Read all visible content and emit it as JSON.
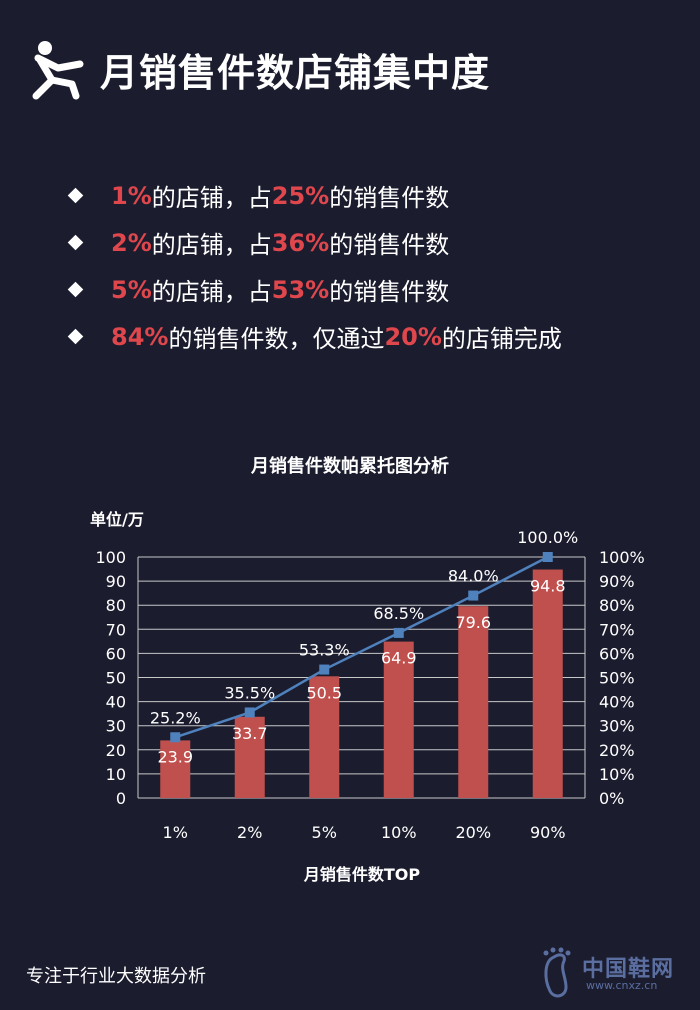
{
  "header": {
    "title": "月销售件数店铺集中度",
    "icon": "person-pushing-icon"
  },
  "bullets": [
    {
      "parts": [
        {
          "t": "1%",
          "hl": true
        },
        {
          "t": "的店铺，占",
          "hl": false
        },
        {
          "t": "25%",
          "hl": true
        },
        {
          "t": "的销售件数",
          "hl": false
        }
      ]
    },
    {
      "parts": [
        {
          "t": "2%",
          "hl": true
        },
        {
          "t": "的店铺，占",
          "hl": false
        },
        {
          "t": "36%",
          "hl": true
        },
        {
          "t": "的销售件数",
          "hl": false
        }
      ]
    },
    {
      "parts": [
        {
          "t": "5%",
          "hl": true
        },
        {
          "t": "的店铺，占",
          "hl": false
        },
        {
          "t": "53%",
          "hl": true
        },
        {
          "t": "的销售件数",
          "hl": false
        }
      ]
    },
    {
      "parts": [
        {
          "t": "84%",
          "hl": true
        },
        {
          "t": "的销售件数，仅通过",
          "hl": false
        },
        {
          "t": "20%",
          "hl": true
        },
        {
          "t": "的店铺完成",
          "hl": false
        }
      ]
    }
  ],
  "chart_data": {
    "type": "bar",
    "title": "月销售件数帕累托图分析",
    "ylabel": "单位/万",
    "xlabel": "月销售件数TOP",
    "categories": [
      "1%",
      "2%",
      "5%",
      "10%",
      "20%",
      "90%"
    ],
    "series": [
      {
        "type": "bar",
        "axis": "left",
        "values": [
          23.9,
          33.7,
          50.5,
          64.9,
          79.6,
          94.8
        ],
        "labels": [
          "23.9",
          "33.7",
          "50.5",
          "64.9",
          "79.6",
          "94.8"
        ],
        "color": "#c0504d"
      },
      {
        "type": "line",
        "axis": "right",
        "values": [
          25.2,
          35.5,
          53.3,
          68.5,
          84.0,
          100.0
        ],
        "labels": [
          "25.2%",
          "35.5%",
          "53.3%",
          "68.5%",
          "84.0%",
          "100.0%"
        ],
        "color": "#4f81bd"
      }
    ],
    "ylim": [
      0,
      100
    ],
    "yticks": [
      "0",
      "10",
      "20",
      "30",
      "40",
      "50",
      "60",
      "70",
      "80",
      "90",
      "100"
    ],
    "y2lim": [
      0,
      100
    ],
    "y2ticks": [
      "0%",
      "10%",
      "20%",
      "30%",
      "40%",
      "50%",
      "60%",
      "70%",
      "80%",
      "90%",
      "100%"
    ],
    "grid": true,
    "legend": "none"
  },
  "footer": {
    "text": "专注于行业大数据分析"
  },
  "watermark": {
    "name": "中国鞋网",
    "url": "www.cnxz.cn",
    "icon": "footprint-logo-icon"
  }
}
